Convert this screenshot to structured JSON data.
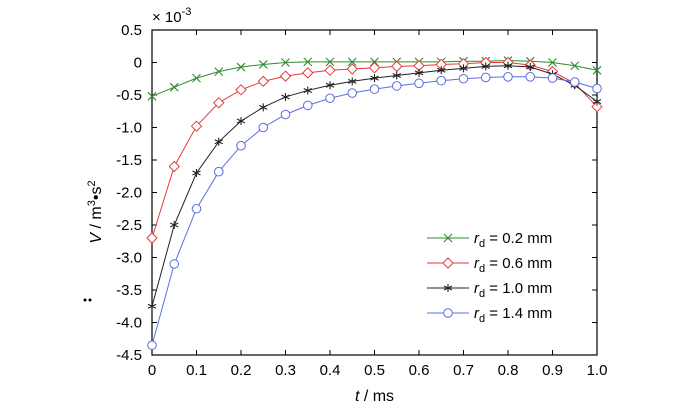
{
  "chart_data": {
    "type": "line",
    "exponent_label": "× 10",
    "exponent_power": "-3",
    "xlabel": {
      "var": "t",
      "unit": " / ms"
    },
    "ylabel": {
      "var": "V",
      "unit_pre": " / m",
      "sup1": "3",
      "mid": "•s",
      "sup2": "2"
    },
    "xlim": [
      0,
      1.0
    ],
    "ylim": [
      -4.5,
      0.5
    ],
    "x_ticks": [
      0,
      0.1,
      0.2,
      0.3,
      0.4,
      0.5,
      0.6,
      0.7,
      0.8,
      0.9,
      1.0
    ],
    "x_tick_labels": [
      "0",
      "0.1",
      "0.2",
      "0.3",
      "0.4",
      "0.5",
      "0.6",
      "0.7",
      "0.8",
      "0.9",
      "1.0"
    ],
    "y_ticks": [
      0.5,
      0,
      -0.5,
      -1.0,
      -1.5,
      -2.0,
      -2.5,
      -3.0,
      -3.5,
      -4.0,
      -4.5
    ],
    "y_tick_labels": [
      "0.5",
      "0",
      "-0.5",
      "-1.0",
      "-1.5",
      "-2.0",
      "-2.5",
      "-3.0",
      "-3.5",
      "-4.0",
      "-4.5"
    ],
    "grid": false,
    "legend": {
      "placement": "lower-right"
    },
    "series": [
      {
        "name_var": "r",
        "name_sub": "d",
        "name_rest": " = 0.2 mm",
        "color": "#2e8b2e",
        "marker": "x",
        "x": [
          0,
          0.05,
          0.1,
          0.15,
          0.2,
          0.25,
          0.3,
          0.35,
          0.4,
          0.45,
          0.5,
          0.55,
          0.6,
          0.65,
          0.7,
          0.75,
          0.8,
          0.85,
          0.9,
          0.95,
          1.0
        ],
        "y": [
          -0.52,
          -0.38,
          -0.24,
          -0.14,
          -0.07,
          -0.03,
          0.0,
          0.01,
          0.01,
          0.01,
          0.01,
          0.01,
          0.01,
          0.01,
          0.02,
          0.02,
          0.03,
          0.02,
          0.0,
          -0.05,
          -0.12
        ]
      },
      {
        "name_var": "r",
        "name_sub": "d",
        "name_rest": " = 0.6 mm",
        "color": "#e83a3a",
        "marker": "diamond",
        "x": [
          0,
          0.05,
          0.1,
          0.15,
          0.2,
          0.25,
          0.3,
          0.35,
          0.4,
          0.45,
          0.5,
          0.55,
          0.6,
          0.65,
          0.7,
          0.75,
          0.8,
          0.85,
          0.9,
          0.95,
          1.0
        ],
        "y": [
          -2.7,
          -1.6,
          -0.98,
          -0.62,
          -0.42,
          -0.29,
          -0.21,
          -0.16,
          -0.12,
          -0.1,
          -0.08,
          -0.06,
          -0.05,
          -0.03,
          -0.02,
          0.0,
          0.0,
          -0.04,
          -0.14,
          -0.32,
          -0.68
        ]
      },
      {
        "name_var": "r",
        "name_sub": "d",
        "name_rest": " = 1.0 mm",
        "color": "#222222",
        "marker": "star",
        "x": [
          0,
          0.05,
          0.1,
          0.15,
          0.2,
          0.25,
          0.3,
          0.35,
          0.4,
          0.45,
          0.5,
          0.55,
          0.6,
          0.65,
          0.7,
          0.75,
          0.8,
          0.85,
          0.9,
          0.95,
          1.0
        ],
        "y": [
          -3.75,
          -2.5,
          -1.7,
          -1.22,
          -0.9,
          -0.69,
          -0.53,
          -0.43,
          -0.35,
          -0.29,
          -0.24,
          -0.2,
          -0.16,
          -0.12,
          -0.09,
          -0.06,
          -0.05,
          -0.07,
          -0.18,
          -0.35,
          -0.6
        ]
      },
      {
        "name_var": "r",
        "name_sub": "d",
        "name_rest": " = 1.4 mm",
        "color": "#5b6ee1",
        "marker": "circle",
        "x": [
          0,
          0.05,
          0.1,
          0.15,
          0.2,
          0.25,
          0.3,
          0.35,
          0.4,
          0.45,
          0.5,
          0.55,
          0.6,
          0.65,
          0.7,
          0.75,
          0.8,
          0.85,
          0.9,
          0.95,
          1.0
        ],
        "y": [
          -4.35,
          -3.1,
          -2.25,
          -1.68,
          -1.28,
          -1.0,
          -0.8,
          -0.66,
          -0.55,
          -0.47,
          -0.41,
          -0.36,
          -0.32,
          -0.28,
          -0.25,
          -0.23,
          -0.22,
          -0.22,
          -0.24,
          -0.3,
          -0.4
        ]
      }
    ]
  }
}
